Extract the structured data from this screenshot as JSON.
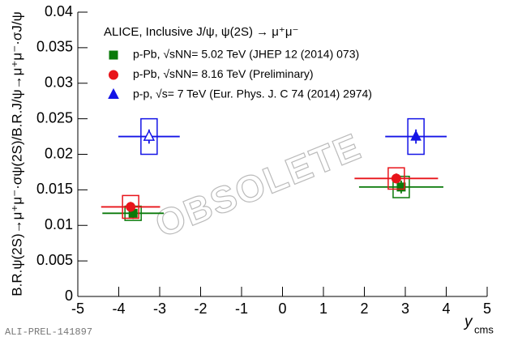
{
  "chart_data": {
    "type": "scatter",
    "legend_title": "ALICE, Inclusive J/ψ, ψ(2S) → μ⁺μ⁻",
    "ylabel": "B.R.ψ(2S)→μ⁺μ⁻·σψ(2S)/B.R.J/ψ→μ⁺μ⁻·σJ/ψ",
    "xlabel": "y",
    "xlabel_sub": "cms",
    "watermark": "OBSOLETE",
    "footer": "ALI-PREL-141897",
    "xlim": [
      -5,
      5
    ],
    "xticks": [
      -5,
      -4,
      -3,
      -2,
      -1,
      0,
      1,
      2,
      3,
      4,
      5
    ],
    "ylim": [
      0,
      0.04
    ],
    "yticks": [
      0,
      0.005,
      0.01,
      0.015,
      0.02,
      0.025,
      0.03,
      0.035,
      0.04
    ],
    "legend": "upper left",
    "series": [
      {
        "name": "p-Pb, √sNN= 5.02 TeV (JHEP 12 (2014) 073)",
        "color": "#0a7a0a",
        "marker": "square",
        "x": [
          -3.65,
          2.9
        ],
        "values": [
          0.0117,
          0.0154
        ],
        "xerr": [
          0.75,
          1.03
        ],
        "yerr": [
          0.0008,
          0.0009
        ],
        "ysys": [
          0.001,
          0.0015
        ]
      },
      {
        "name": "p-Pb, √sNN= 8.16 TeV (Preliminary)",
        "color": "#e8141a",
        "marker": "circle",
        "x": [
          -3.71,
          2.78
        ],
        "values": [
          0.0126,
          0.0166
        ],
        "xerr": [
          0.72,
          1.02
        ],
        "yerr": [
          0.0007,
          0.0007
        ],
        "ysys": [
          0.0016,
          0.0015
        ]
      },
      {
        "name": "p-p, √s= 7 TeV (Eur. Phys. J. C 74 (2014) 2974)",
        "color": "#1414e6",
        "marker": "triangle",
        "open": [
          true,
          false
        ],
        "x": [
          -3.26,
          3.26
        ],
        "values": [
          0.0225,
          0.0225
        ],
        "xerr": [
          0.75,
          0.75
        ],
        "yerr": [
          0.001,
          0.001
        ],
        "ysys": [
          0.0025,
          0.0025
        ]
      }
    ]
  }
}
